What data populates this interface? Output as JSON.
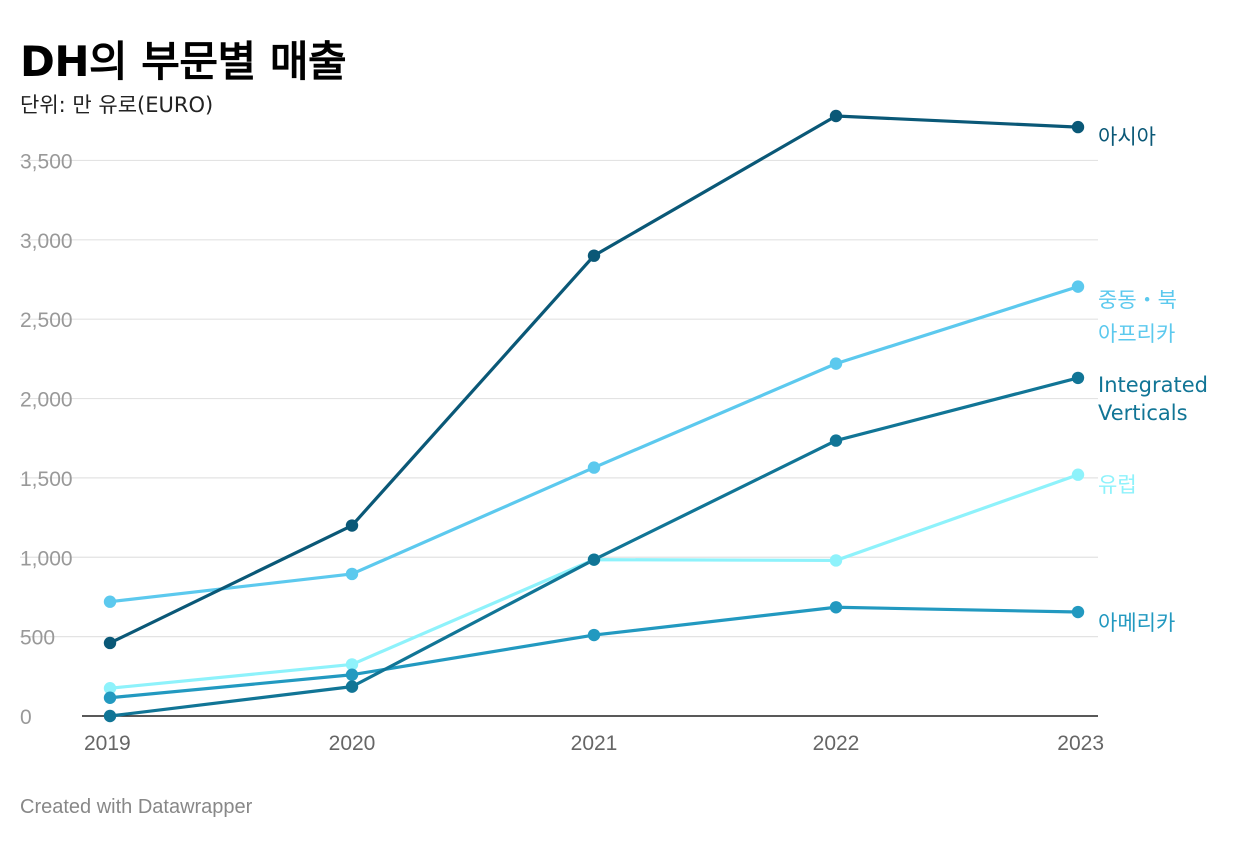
{
  "title": "DH의 부문별 매출",
  "subtitle": "단위: 만 유로(EURO)",
  "footer": "Created with Datawrapper",
  "chart_data": {
    "type": "line",
    "title": "DH의 부문별 매출",
    "subtitle": "단위: 만 유로(EURO)",
    "xlabel": "",
    "ylabel": "",
    "x": [
      "2019",
      "2020",
      "2021",
      "2022",
      "2023"
    ],
    "ylim": [
      0,
      3800
    ],
    "yticks": [
      0,
      500,
      1000,
      1500,
      2000,
      2500,
      3000,
      3500
    ],
    "ytick_labels": [
      "0",
      "500",
      "1,000",
      "1,500",
      "2,000",
      "2,500",
      "3,000",
      "3,500"
    ],
    "grid": true,
    "series": [
      {
        "name": "아시아",
        "label_lines": [
          "아시아"
        ],
        "color": "#0a5877",
        "values": [
          460,
          1200,
          2900,
          3780,
          3710
        ]
      },
      {
        "name": "중동・북아프리카",
        "label_lines": [
          "중동・북",
          "아프리카"
        ],
        "color": "#5cc9ee",
        "values": [
          720,
          895,
          1565,
          2220,
          2705
        ]
      },
      {
        "name": "Integrated Verticals",
        "label_lines": [
          "Integrated",
          "Verticals"
        ],
        "color": "#117596",
        "values": [
          0,
          185,
          985,
          1735,
          2130
        ]
      },
      {
        "name": "유럽",
        "label_lines": [
          "유럽"
        ],
        "color": "#8ef2fb",
        "values": [
          175,
          325,
          985,
          980,
          1520
        ]
      },
      {
        "name": "아메리카",
        "label_lines": [
          "아메리카"
        ],
        "color": "#2299c0",
        "values": [
          115,
          260,
          510,
          685,
          655
        ]
      }
    ]
  }
}
